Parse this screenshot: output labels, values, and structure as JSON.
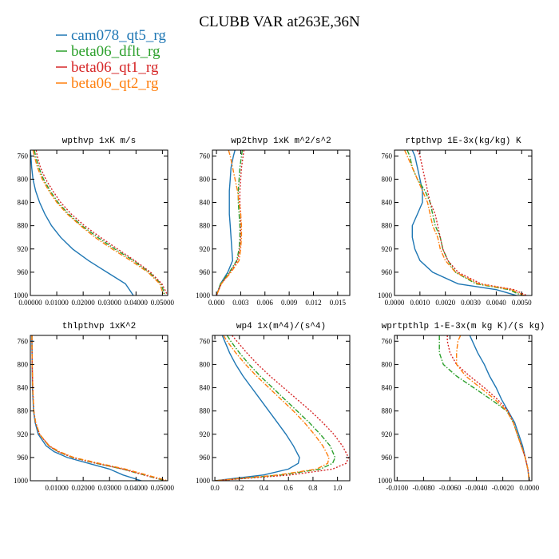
{
  "title": "CLUBB VAR at263E,36N",
  "legend": [
    {
      "name": "cam078_qt5_rg",
      "color": "#1f77b4",
      "dash": "solid"
    },
    {
      "name": "beta06_dflt_rg",
      "color": "#2ca02c",
      "dash": "dashdot"
    },
    {
      "name": "beta06_qt1_rg",
      "color": "#d62728",
      "dash": "dotted"
    },
    {
      "name": "beta06_qt2_rg",
      "color": "#ff7f0e",
      "dash": "dashdot"
    }
  ],
  "chart_data": [
    {
      "type": "line",
      "title": "wpthvp  1xK m/s",
      "ylabel": "",
      "xlabel": "",
      "xlim": [
        0,
        0.052
      ],
      "ylim": [
        1000,
        750
      ],
      "xticks": [
        "0.00000",
        "0.01000",
        "0.02000",
        "0.03000",
        "0.04000",
        "0.05000"
      ],
      "xtick_values": [
        0,
        0.01,
        0.02,
        0.03,
        0.04,
        0.05
      ],
      "yticks": [
        "760",
        "800",
        "840",
        "880",
        "920",
        "960",
        "1000"
      ],
      "ytick_values": [
        760,
        800,
        840,
        880,
        920,
        960,
        1000
      ],
      "y": [
        750,
        760,
        780,
        800,
        820,
        840,
        860,
        880,
        900,
        920,
        940,
        960,
        980,
        1000
      ],
      "series": [
        {
          "name": "cam078_qt5_rg",
          "values": [
            0.0,
            0.0002,
            0.0005,
            0.001,
            0.002,
            0.0035,
            0.0055,
            0.008,
            0.0115,
            0.016,
            0.022,
            0.029,
            0.036,
            0.039
          ]
        },
        {
          "name": "beta06_dflt_rg",
          "values": [
            0.0015,
            0.002,
            0.0032,
            0.005,
            0.0075,
            0.0105,
            0.0145,
            0.0195,
            0.0255,
            0.032,
            0.039,
            0.045,
            0.0495,
            0.051
          ]
        },
        {
          "name": "beta06_qt1_rg",
          "values": [
            0.0022,
            0.0026,
            0.0038,
            0.0058,
            0.0085,
            0.0115,
            0.0155,
            0.0205,
            0.0265,
            0.033,
            0.0395,
            0.0455,
            0.0498,
            0.052
          ]
        },
        {
          "name": "beta06_qt2_rg",
          "values": [
            0.001,
            0.0015,
            0.0027,
            0.0045,
            0.007,
            0.01,
            0.014,
            0.019,
            0.0245,
            0.031,
            0.038,
            0.0445,
            0.049,
            0.0505
          ]
        }
      ]
    },
    {
      "type": "line",
      "title": "wp2thvp  1xK m^2/s^2",
      "ylabel": "",
      "xlabel": "",
      "xlim": [
        -0.0005,
        0.0165
      ],
      "ylim": [
        1000,
        750
      ],
      "xticks": [
        "0.000",
        "0.003",
        "0.006",
        "0.009",
        "0.012",
        "0.015"
      ],
      "xtick_values": [
        0,
        0.003,
        0.006,
        0.009,
        0.012,
        0.015
      ],
      "yticks": [
        "760",
        "800",
        "840",
        "880",
        "920",
        "960",
        "1000"
      ],
      "ytick_values": [
        760,
        800,
        840,
        880,
        920,
        960,
        1000
      ],
      "y": [
        750,
        760,
        780,
        800,
        820,
        840,
        860,
        880,
        900,
        920,
        940,
        960,
        980,
        1000
      ],
      "series": [
        {
          "name": "cam078_qt5_rg",
          "values": [
            0.0023,
            0.0021,
            0.0018,
            0.0017,
            0.0016,
            0.0016,
            0.0016,
            0.0017,
            0.0018,
            0.0019,
            0.002,
            0.0014,
            0.0005,
            0.0
          ]
        },
        {
          "name": "beta06_dflt_rg",
          "values": [
            0.0032,
            0.0031,
            0.0029,
            0.0028,
            0.0027,
            0.0027,
            0.0028,
            0.0029,
            0.0029,
            0.0028,
            0.0025,
            0.0016,
            0.0005,
            0.0
          ]
        },
        {
          "name": "beta06_qt1_rg",
          "values": [
            0.0034,
            0.0033,
            0.0031,
            0.003,
            0.0029,
            0.0029,
            0.003,
            0.003,
            0.003,
            0.0029,
            0.0026,
            0.0017,
            0.0006,
            0.0
          ]
        },
        {
          "name": "beta06_qt2_rg",
          "values": [
            0.0015,
            0.0017,
            0.002,
            0.0023,
            0.0026,
            0.0028,
            0.003,
            0.0031,
            0.0031,
            0.003,
            0.0028,
            0.0018,
            0.0006,
            0.0
          ]
        }
      ]
    },
    {
      "type": "line",
      "title": "rtpthvp  1E-3x(kg/kg) K",
      "ylabel": "",
      "xlabel": "",
      "xlim": [
        0,
        0.0054
      ],
      "ylim": [
        1000,
        750
      ],
      "xticks": [
        "0.0000",
        "0.0010",
        "0.0020",
        "0.0030",
        "0.0040",
        "0.0050"
      ],
      "xtick_values": [
        0,
        0.001,
        0.002,
        0.003,
        0.004,
        0.005
      ],
      "yticks": [
        "760",
        "800",
        "840",
        "880",
        "920",
        "960",
        "1000"
      ],
      "ytick_values": [
        760,
        800,
        840,
        880,
        920,
        960,
        1000
      ],
      "y": [
        750,
        760,
        780,
        800,
        820,
        840,
        860,
        880,
        900,
        920,
        940,
        960,
        980,
        990,
        1000
      ],
      "series": [
        {
          "name": "cam078_qt5_rg",
          "values": [
            0.0007,
            0.0008,
            0.0009,
            0.001,
            0.0011,
            0.0011,
            0.0009,
            0.0007,
            0.0007,
            0.0008,
            0.001,
            0.0015,
            0.0025,
            0.004,
            0.0048
          ]
        },
        {
          "name": "beta06_dflt_rg",
          "values": [
            0.0005,
            0.0006,
            0.0007,
            0.0009,
            0.0012,
            0.0014,
            0.0015,
            0.0016,
            0.0018,
            0.0019,
            0.0021,
            0.0024,
            0.0032,
            0.0045,
            0.005
          ]
        },
        {
          "name": "beta06_qt1_rg",
          "values": [
            0.0009,
            0.001,
            0.0011,
            0.0012,
            0.0013,
            0.0014,
            0.0016,
            0.0017,
            0.0018,
            0.0019,
            0.0021,
            0.0025,
            0.0034,
            0.0047,
            0.0052
          ]
        },
        {
          "name": "beta06_qt2_rg",
          "values": [
            0.0004,
            0.0005,
            0.0007,
            0.0009,
            0.0011,
            0.0013,
            0.0014,
            0.0015,
            0.0017,
            0.0018,
            0.002,
            0.0024,
            0.0033,
            0.0046,
            0.0051
          ]
        }
      ]
    },
    {
      "type": "line",
      "title": "thlpthvp  1xK^2",
      "ylabel": "",
      "xlabel": "",
      "xlim": [
        0,
        0.052
      ],
      "ylim": [
        1000,
        750
      ],
      "xticks": [
        "0.01000",
        "0.02000",
        "0.03000",
        "0.04000",
        "0.05000"
      ],
      "xtick_values": [
        0.01,
        0.02,
        0.03,
        0.04,
        0.05
      ],
      "yticks": [
        "760",
        "800",
        "840",
        "880",
        "920",
        "960",
        "1000"
      ],
      "ytick_values": [
        760,
        800,
        840,
        880,
        920,
        960,
        1000
      ],
      "y": [
        750,
        760,
        800,
        840,
        880,
        900,
        920,
        940,
        950,
        960,
        970,
        980,
        990,
        1000
      ],
      "series": [
        {
          "name": "cam078_qt5_rg",
          "values": [
            0.0006,
            0.0006,
            0.0007,
            0.0008,
            0.0012,
            0.0018,
            0.003,
            0.006,
            0.009,
            0.014,
            0.022,
            0.03,
            0.035,
            0.042
          ]
        },
        {
          "name": "beta06_dflt_rg",
          "values": [
            0.0006,
            0.0006,
            0.0007,
            0.0009,
            0.0013,
            0.002,
            0.0035,
            0.007,
            0.0105,
            0.016,
            0.025,
            0.035,
            0.043,
            0.051
          ]
        },
        {
          "name": "beta06_qt1_rg",
          "values": [
            0.0006,
            0.0006,
            0.0007,
            0.0009,
            0.0013,
            0.002,
            0.0035,
            0.007,
            0.0105,
            0.016,
            0.025,
            0.035,
            0.043,
            0.0515
          ]
        },
        {
          "name": "beta06_qt2_rg",
          "values": [
            0.0006,
            0.0006,
            0.0007,
            0.0009,
            0.0013,
            0.002,
            0.0035,
            0.0072,
            0.011,
            0.0165,
            0.026,
            0.036,
            0.044,
            0.052
          ]
        }
      ]
    },
    {
      "type": "line",
      "title": "wp4  1x(m^4)/(s^4)",
      "ylabel": "",
      "xlabel": "",
      "xlim": [
        -0.02,
        1.1
      ],
      "ylim": [
        1000,
        750
      ],
      "xticks": [
        "0.0",
        "0.2",
        "0.4",
        "0.6",
        "0.8",
        "1.0"
      ],
      "xtick_values": [
        0,
        0.2,
        0.4,
        0.6,
        0.8,
        1.0
      ],
      "yticks": [
        "760",
        "800",
        "840",
        "880",
        "920",
        "960",
        "1000"
      ],
      "ytick_values": [
        760,
        800,
        840,
        880,
        920,
        960,
        1000
      ],
      "y": [
        750,
        760,
        780,
        800,
        820,
        840,
        860,
        880,
        900,
        920,
        940,
        960,
        970,
        980,
        990,
        1000
      ],
      "series": [
        {
          "name": "cam078_qt5_rg",
          "values": [
            0.06,
            0.08,
            0.12,
            0.17,
            0.23,
            0.3,
            0.37,
            0.44,
            0.51,
            0.58,
            0.64,
            0.69,
            0.68,
            0.6,
            0.4,
            0.0
          ]
        },
        {
          "name": "beta06_dflt_rg",
          "values": [
            0.1,
            0.13,
            0.2,
            0.28,
            0.37,
            0.47,
            0.57,
            0.67,
            0.77,
            0.86,
            0.94,
            0.98,
            0.96,
            0.86,
            0.55,
            0.0
          ]
        },
        {
          "name": "beta06_qt1_rg",
          "values": [
            0.14,
            0.18,
            0.26,
            0.35,
            0.45,
            0.56,
            0.67,
            0.78,
            0.88,
            0.97,
            1.04,
            1.09,
            1.07,
            0.96,
            0.62,
            0.0
          ]
        },
        {
          "name": "beta06_qt2_rg",
          "values": [
            0.07,
            0.1,
            0.17,
            0.25,
            0.34,
            0.44,
            0.54,
            0.64,
            0.73,
            0.81,
            0.88,
            0.93,
            0.92,
            0.83,
            0.52,
            0.0
          ]
        }
      ]
    },
    {
      "type": "line",
      "title": "wprtpthlp  1-E-3x(m kg K)/(s kg)",
      "ylabel": "",
      "xlabel": "",
      "xlim": [
        -0.0102,
        0.0002
      ],
      "ylim": [
        1000,
        750
      ],
      "xticks": [
        "-0.0100",
        "-0.0080",
        "-0.0060",
        "-0.0040",
        "-0.0020",
        "0.0000"
      ],
      "xtick_values": [
        -0.01,
        -0.008,
        -0.006,
        -0.004,
        -0.002,
        0
      ],
      "yticks": [
        "760",
        "800",
        "840",
        "880",
        "920",
        "960",
        "1000"
      ],
      "ytick_values": [
        760,
        800,
        840,
        880,
        920,
        960,
        1000
      ],
      "y": [
        750,
        760,
        780,
        800,
        820,
        840,
        860,
        880,
        900,
        920,
        940,
        960,
        980,
        1000
      ],
      "series": [
        {
          "name": "cam078_qt5_rg",
          "values": [
            -0.0045,
            -0.0043,
            -0.0039,
            -0.0034,
            -0.003,
            -0.0025,
            -0.0021,
            -0.0016,
            -0.0011,
            -0.0008,
            -0.0005,
            -0.0003,
            -0.0001,
            0.0
          ]
        },
        {
          "name": "beta06_dflt_rg",
          "values": [
            -0.0068,
            -0.0068,
            -0.0068,
            -0.0065,
            -0.0055,
            -0.0042,
            -0.0029,
            -0.0017,
            -0.0012,
            -0.0009,
            -0.0006,
            -0.0003,
            -0.0001,
            0.0
          ]
        },
        {
          "name": "beta06_qt1_rg",
          "values": [
            -0.0062,
            -0.0062,
            -0.006,
            -0.0055,
            -0.0045,
            -0.0034,
            -0.0024,
            -0.0016,
            -0.0012,
            -0.0009,
            -0.0006,
            -0.0003,
            -0.0001,
            0.0
          ]
        },
        {
          "name": "beta06_qt2_rg",
          "values": [
            -0.0052,
            -0.0054,
            -0.0055,
            -0.0055,
            -0.0048,
            -0.0037,
            -0.0026,
            -0.0017,
            -0.0012,
            -0.0009,
            -0.0006,
            -0.0003,
            -0.0001,
            0.0
          ]
        }
      ]
    }
  ]
}
